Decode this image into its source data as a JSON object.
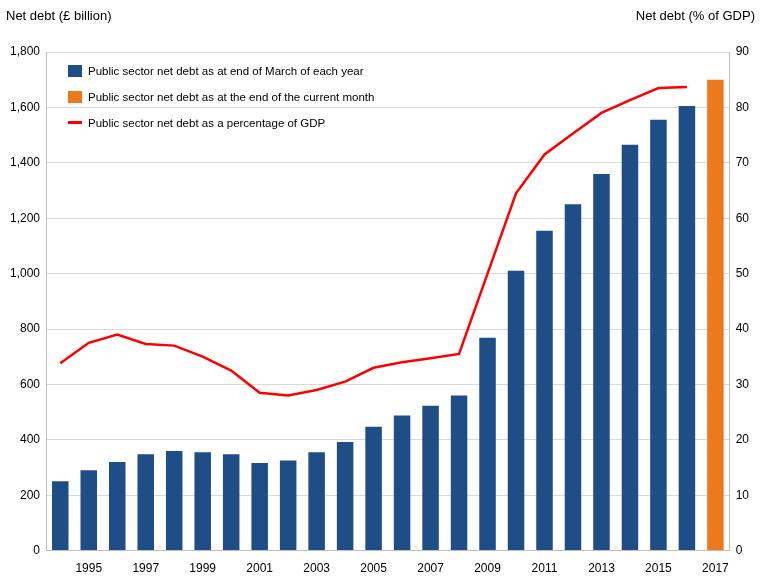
{
  "chart_data": {
    "type": "bar",
    "y_label": "Net debt (£ billion)",
    "y2_label": "Net debt (% of GDP)",
    "categories": [
      null,
      "1995",
      null,
      "1997",
      null,
      "1999",
      null,
      "2001",
      null,
      "2003",
      null,
      "2005",
      null,
      "2007",
      null,
      "2009",
      null,
      "2011",
      null,
      "2013",
      null,
      "2015",
      null,
      "2017"
    ],
    "series": [
      {
        "name": "Public sector net debt as at end of March of each year",
        "color": "#1f4e87",
        "values": [
          250,
          290,
          320,
          348,
          360,
          355,
          348,
          316,
          325,
          355,
          392,
          447,
          488,
          523,
          560,
          768,
          1010,
          1155,
          1250,
          1360,
          1465,
          1555,
          1605,
          null
        ]
      },
      {
        "name": "Public sector net debt as at the end of the current month",
        "color": "#ec7a1c",
        "values": [
          null,
          null,
          null,
          null,
          null,
          null,
          null,
          null,
          null,
          null,
          null,
          null,
          null,
          null,
          null,
          null,
          null,
          null,
          null,
          null,
          null,
          null,
          null,
          1700
        ]
      },
      {
        "name": "Public sector net debt as a percentage of GDP",
        "color": "#ff0000",
        "type": "line",
        "axis": "y2",
        "values": [
          33.8,
          37.5,
          39,
          37.3,
          37,
          35,
          32.5,
          28.5,
          28,
          29,
          30.5,
          33,
          34,
          34.7,
          35.5,
          50,
          64.5,
          71.5,
          75.3,
          79,
          81.3,
          83.5,
          83.7,
          null
        ]
      }
    ],
    "ylim": [
      0,
      1800
    ],
    "yticks": [
      0,
      200,
      400,
      600,
      800,
      {
        "value": 1000,
        "label": "1,000"
      },
      {
        "value": 1200,
        "label": "1,200"
      },
      {
        "value": 1400,
        "label": "1,400"
      },
      {
        "value": 1600,
        "label": "1,600"
      },
      {
        "value": 1800,
        "label": "1,800"
      }
    ],
    "y2lim": [
      0,
      90
    ],
    "y2ticks": [
      0,
      10,
      20,
      30,
      40,
      50,
      60,
      70,
      80,
      90
    ],
    "grid": true,
    "legend": "upper left"
  }
}
